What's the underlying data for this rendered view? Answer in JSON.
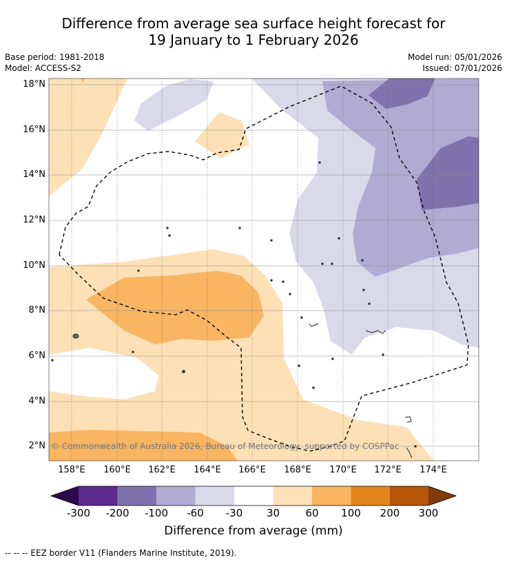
{
  "title": {
    "line1": "Difference from average sea surface height forecast for",
    "line2": "19 January to 1 February 2026"
  },
  "meta": {
    "base_period": "Base period: 1981-2018",
    "model": "Model: ACCESS-S2",
    "model_run": "Model run: 05/01/2026",
    "issued": "Issued: 07/01/2026"
  },
  "map": {
    "lon_labels": [
      "158°E",
      "160°E",
      "162°E",
      "164°E",
      "166°E",
      "168°E",
      "170°E",
      "172°E",
      "174°E"
    ],
    "lat_labels": [
      "18°N",
      "16°N",
      "14°N",
      "12°N",
      "10°N",
      "8°N",
      "6°N",
      "4°N",
      "2°N"
    ],
    "copyright": "© Commonwealth of Australia 2026, Bureau of Meteorology, supported by COSPPac"
  },
  "colorbar": {
    "labels": [
      "-300",
      "-200",
      "-100",
      "-60",
      "-30",
      "30",
      "60",
      "100",
      "200",
      "300"
    ],
    "colors": {
      "below_min": "#2d0a4e",
      "c1": "#5b2a8c",
      "c2": "#8073ad",
      "c3": "#b1aad2",
      "c4": "#d9d9ea",
      "c5": "#ffffff",
      "c6": "#fde0b6",
      "c7": "#f9b562",
      "c8": "#e3851b",
      "c9": "#b5560a",
      "above_max": "#7f3b08"
    },
    "title": "Difference from average (mm)"
  },
  "footer": {
    "legend": "--  --  -- EEZ border V11 (Flanders Marine Institute, 2019)."
  }
}
